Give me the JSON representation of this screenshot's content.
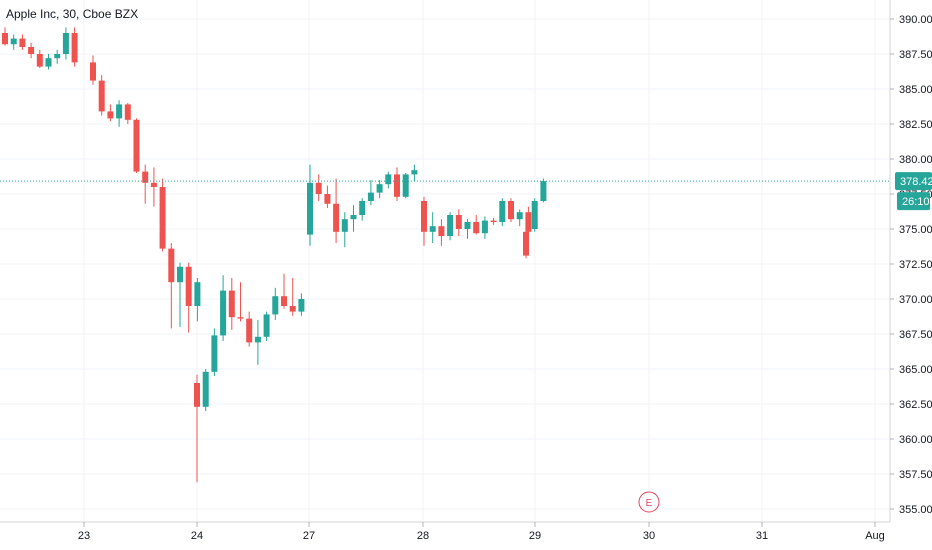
{
  "header": {
    "title": "Apple Inc, 30, Cboe BZX"
  },
  "price_axis": {
    "labels": [
      "390.00",
      "387.50",
      "385.00",
      "382.50",
      "380.00",
      "377.50",
      "375.00",
      "372.50",
      "370.00",
      "367.50",
      "365.00",
      "362.50",
      "360.00",
      "357.50",
      "355.00"
    ],
    "last_price_label": "378.42",
    "countdown_label": "26:10"
  },
  "time_axis": {
    "labels": [
      "23",
      "24",
      "27",
      "28",
      "29",
      "30",
      "31",
      "Aug"
    ]
  },
  "earnings_marker": {
    "label": "E",
    "date": "30"
  },
  "colors": {
    "up": "#26a69a",
    "down": "#ef5350",
    "grid": "#f0f3fa",
    "last_line": "#26a69a",
    "earnings": "#e0455f"
  },
  "chart_data": {
    "type": "candlestick",
    "title": "Apple Inc, 30, Cboe BZX",
    "ylim": [
      354.5,
      391.0
    ],
    "last_price": 378.42,
    "sessions": [
      {
        "day": "22",
        "candles": [
          [
            389.0,
            389.4,
            388.1,
            388.2
          ],
          [
            388.2,
            388.9,
            387.8,
            388.6
          ],
          [
            388.6,
            388.9,
            387.8,
            388.0
          ],
          [
            388.0,
            388.3,
            387.2,
            387.5
          ],
          [
            387.5,
            387.8,
            386.5,
            386.6
          ],
          [
            386.6,
            387.5,
            386.4,
            387.2
          ],
          [
            387.2,
            387.8,
            386.8,
            387.5
          ],
          [
            387.5,
            389.4,
            387.1,
            389.0
          ],
          [
            389.0,
            389.4,
            386.6,
            386.9
          ]
        ]
      },
      {
        "day": "23",
        "candles": [
          [
            386.9,
            387.4,
            385.3,
            385.6
          ],
          [
            385.6,
            386.0,
            383.1,
            383.4
          ],
          [
            383.4,
            383.9,
            382.7,
            382.9
          ],
          [
            382.9,
            384.2,
            382.3,
            383.9
          ],
          [
            383.9,
            384.0,
            382.5,
            382.8
          ],
          [
            382.8,
            382.9,
            379.0,
            379.1
          ],
          [
            379.1,
            379.6,
            376.8,
            378.3
          ],
          [
            378.3,
            379.4,
            376.6,
            378.0
          ],
          [
            378.0,
            378.6,
            373.4,
            373.6
          ],
          [
            373.6,
            374.0,
            367.9,
            371.2
          ],
          [
            371.2,
            372.6,
            368.0,
            372.3
          ],
          [
            372.3,
            372.6,
            367.6,
            369.5
          ],
          [
            369.5,
            371.5,
            368.4,
            371.2
          ]
        ]
      },
      {
        "day": "24",
        "candles": [
          [
            364.0,
            364.6,
            356.9,
            362.3
          ],
          [
            362.3,
            365.0,
            362.0,
            364.8
          ],
          [
            364.8,
            367.9,
            364.5,
            367.4
          ],
          [
            367.4,
            371.7,
            367.0,
            370.6
          ],
          [
            370.6,
            371.5,
            367.8,
            368.7
          ],
          [
            368.7,
            371.2,
            368.4,
            368.6
          ],
          [
            368.6,
            369.1,
            366.6,
            366.9
          ],
          [
            366.9,
            368.5,
            365.3,
            367.3
          ],
          [
            367.3,
            369.1,
            367.0,
            368.9
          ],
          [
            368.9,
            370.8,
            368.5,
            370.2
          ],
          [
            370.2,
            371.8,
            369.3,
            369.5
          ],
          [
            369.5,
            371.5,
            368.8,
            369.1
          ],
          [
            369.1,
            370.4,
            368.8,
            370.0
          ]
        ]
      },
      {
        "day": "27",
        "candles": [
          [
            374.6,
            379.6,
            373.8,
            378.3
          ],
          [
            378.3,
            378.9,
            377.0,
            377.5
          ],
          [
            377.5,
            378.1,
            376.5,
            376.8
          ],
          [
            376.8,
            378.6,
            374.0,
            374.8
          ],
          [
            374.8,
            376.2,
            373.7,
            375.7
          ],
          [
            375.7,
            376.7,
            374.8,
            376.0
          ],
          [
            376.0,
            377.2,
            375.6,
            377.0
          ],
          [
            377.0,
            378.5,
            376.7,
            377.6
          ],
          [
            377.6,
            378.5,
            377.2,
            378.2
          ],
          [
            378.2,
            379.1,
            377.9,
            378.9
          ],
          [
            378.9,
            379.4,
            377.0,
            377.3
          ],
          [
            377.3,
            379.0,
            377.2,
            378.9
          ],
          [
            378.9,
            379.6,
            378.4,
            379.2
          ]
        ]
      },
      {
        "day": "28",
        "candles": [
          [
            377.0,
            377.3,
            373.8,
            374.8
          ],
          [
            374.8,
            376.2,
            374.0,
            375.2
          ],
          [
            375.2,
            375.7,
            373.8,
            374.5
          ],
          [
            374.5,
            376.2,
            374.2,
            376.0
          ],
          [
            376.0,
            376.4,
            374.5,
            375.0
          ],
          [
            375.0,
            375.7,
            374.3,
            375.5
          ],
          [
            375.5,
            376.0,
            374.6,
            374.7
          ],
          [
            374.7,
            375.9,
            374.3,
            375.6
          ],
          [
            375.6,
            375.8,
            375.3,
            375.5
          ],
          [
            375.5,
            377.2,
            375.2,
            377.0
          ],
          [
            377.0,
            377.2,
            375.5,
            375.7
          ],
          [
            375.7,
            376.4,
            375.2,
            376.2
          ],
          [
            376.2,
            376.6,
            374.5,
            374.8
          ]
        ]
      },
      {
        "day": "29",
        "candles": [
          [
            374.8,
            376.0,
            372.9,
            373.1
          ],
          [
            375.0,
            377.2,
            374.8,
            377.0
          ],
          [
            377.0,
            378.6,
            376.9,
            378.42
          ]
        ]
      }
    ]
  }
}
